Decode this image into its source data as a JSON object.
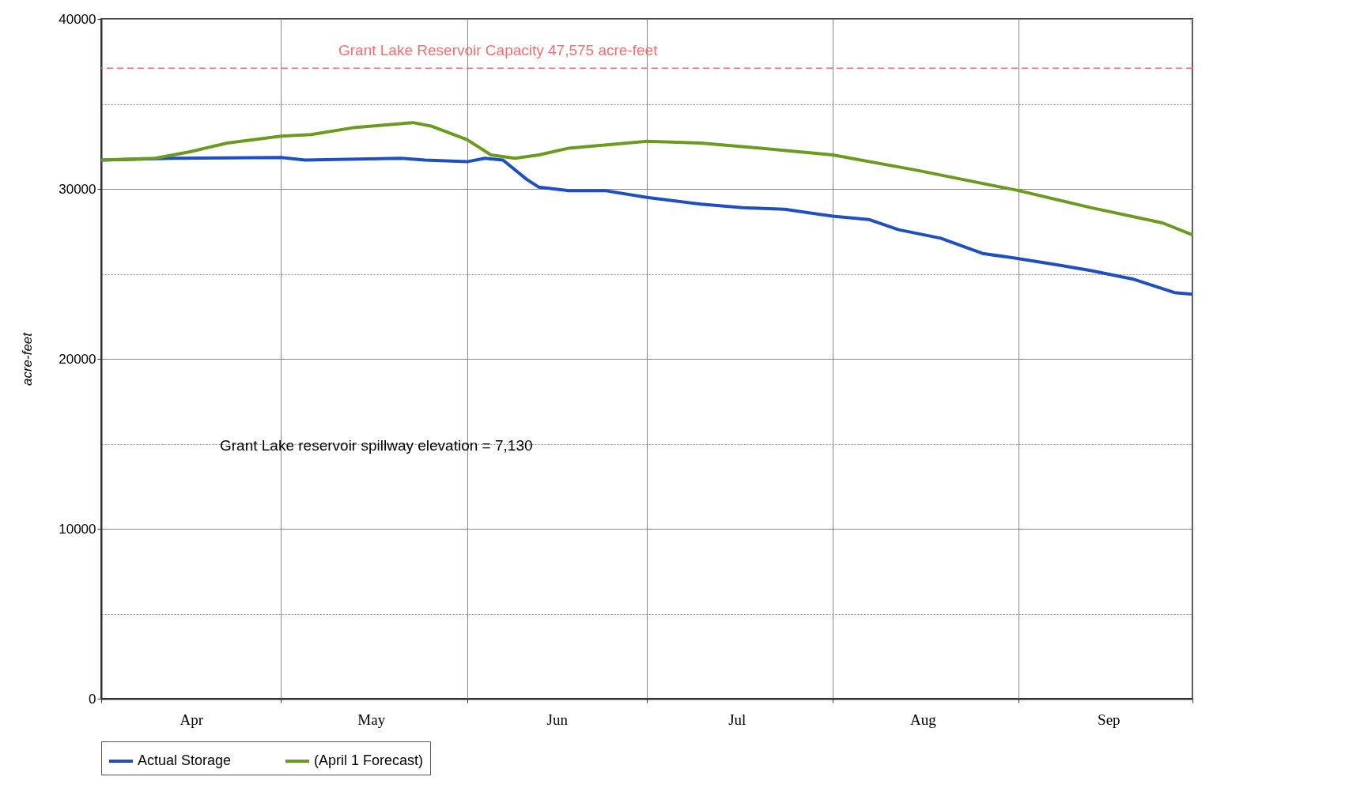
{
  "chart_data": {
    "type": "line",
    "ylabel": "acre-feet",
    "xlim": [
      "--04-01",
      "--09-30"
    ],
    "ylim": [
      0,
      40000
    ],
    "yticks": [
      0,
      {
        "value": 5000,
        "label": null
      },
      10000,
      {
        "value": 15000,
        "label": null
      },
      20000,
      {
        "value": 25000,
        "label": null
      },
      30000,
      {
        "value": 35000,
        "label": null
      },
      40000
    ],
    "xticks": [
      {
        "value": "--04-01",
        "label": null
      },
      {
        "value": "--04-16",
        "label": "Apr"
      },
      {
        "value": "--05-01",
        "label": null
      },
      {
        "value": "--05-16",
        "label": "May"
      },
      {
        "value": "--06-01",
        "label": null
      },
      {
        "value": "--06-16",
        "label": "Jun"
      },
      {
        "value": "--07-01",
        "label": null
      },
      {
        "value": "--07-16",
        "label": "Jul"
      },
      {
        "value": "--08-01",
        "label": null
      },
      {
        "value": "--08-16",
        "label": "Aug"
      },
      {
        "value": "--09-01",
        "label": null
      },
      {
        "value": "--09-16",
        "label": "Sep"
      },
      {
        "value": "--09-30",
        "label": null
      }
    ],
    "grid": true,
    "legend": "bottom",
    "line_style": "solid",
    "marker": "none",
    "ref_lines": [
      {
        "axis": "y",
        "value": 37100,
        "label": "Grant Lake Reservoir Capacity  47,575 acre-feet",
        "color": "#f07070",
        "line_style": "dashed"
      }
    ],
    "annotations": [
      "Grant Lake reservoir spillway elevation = 7,130"
    ],
    "series": [
      {
        "name": "Actual Storage",
        "color": "#1f4fbf",
        "x": [
          "--04-01",
          "--04-13",
          "--05-01",
          "--05-05",
          "--05-21",
          "--05-25",
          "--06-01",
          "--06-04",
          "--06-07",
          "--06-11",
          "--06-13",
          "--06-18",
          "--06-24",
          "--07-01",
          "--07-10",
          "--07-17",
          "--07-24",
          "--08-01",
          "--08-07",
          "--08-12",
          "--08-19",
          "--08-26",
          "--09-01",
          "--09-08",
          "--09-13",
          "--09-20",
          "--09-27",
          "--09-30"
        ],
        "values": [
          31700,
          31800,
          31850,
          31700,
          31800,
          31700,
          31600,
          31800,
          31700,
          30550,
          30100,
          29900,
          29900,
          29500,
          29100,
          28900,
          28800,
          28400,
          28200,
          27600,
          27100,
          26200,
          25900,
          25500,
          25200,
          24700,
          23900,
          23800
        ]
      },
      {
        "name": "(April 1 Forecast)",
        "color": "#6a9a1f",
        "x": [
          "--04-01",
          "--04-10",
          "--04-16",
          "--04-22",
          "--05-01",
          "--05-06",
          "--05-13",
          "--05-23",
          "--05-26",
          "--06-01",
          "--06-05",
          "--06-09",
          "--06-13",
          "--06-18",
          "--07-01",
          "--07-10",
          "--07-20",
          "--08-01",
          "--08-15",
          "--09-01",
          "--09-13",
          "--09-25",
          "--09-30"
        ],
        "values": [
          31700,
          31800,
          32200,
          32700,
          33100,
          33200,
          33600,
          33900,
          33700,
          32900,
          32000,
          31800,
          32000,
          32400,
          32800,
          32700,
          32400,
          32000,
          31100,
          29900,
          28900,
          28000,
          27300
        ]
      }
    ]
  }
}
